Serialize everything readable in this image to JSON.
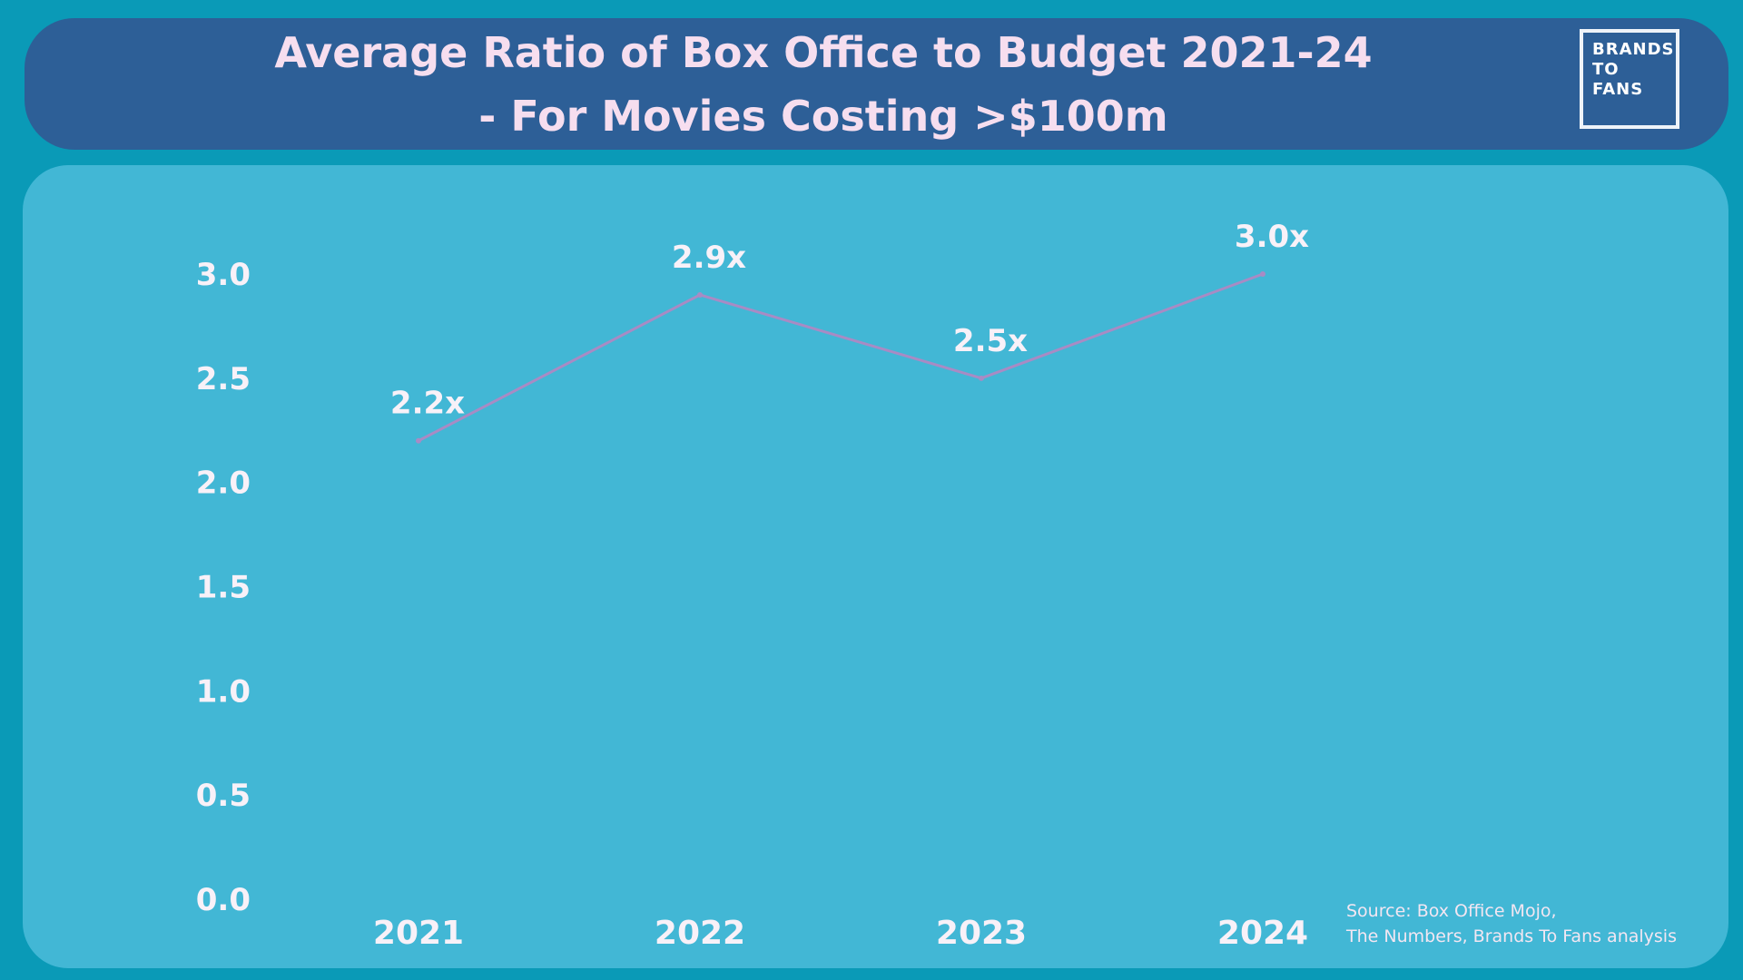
{
  "header": {
    "title_line1": "Average Ratio of Box Office to Budget 2021-24",
    "title_line2": "- For Movies Costing >$100m"
  },
  "logo": {
    "line1": "BRANDS",
    "line2": "TO",
    "line3": "FANS"
  },
  "source": {
    "line1": "Source: Box Office Mojo,",
    "line2": "The Numbers, Brands To Fans analysis"
  },
  "colors": {
    "background": "#0a9ab7",
    "header": "#2d5f97",
    "panel": "#42b7d5",
    "line": "#a88bc4",
    "text": "#f6deef"
  },
  "chart_data": {
    "type": "line",
    "title": "Average Ratio of Box Office to Budget 2021-24 - For Movies Costing >$100m",
    "categories": [
      "2021",
      "2022",
      "2023",
      "2024"
    ],
    "series": [
      {
        "values": [
          2.2,
          2.9,
          2.5,
          3.0
        ],
        "labels": [
          "2.2x",
          "2.9x",
          "2.5x",
          "3.0x"
        ]
      }
    ],
    "yticks": [
      "0.0",
      "0.5",
      "1.0",
      "1.5",
      "2.0",
      "2.5",
      "3.0"
    ],
    "ylim": [
      0,
      3
    ],
    "xlabel": "",
    "ylabel": "",
    "grid": false,
    "legend": "none"
  }
}
